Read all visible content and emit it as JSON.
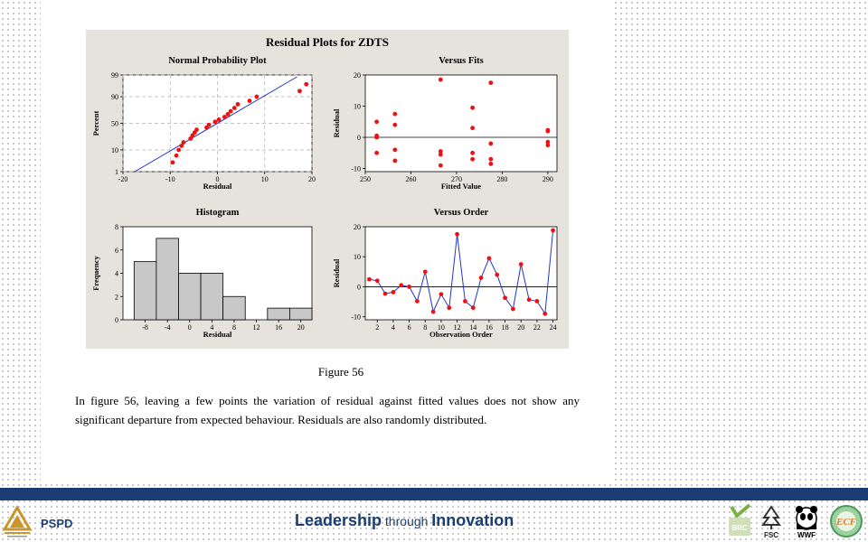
{
  "figure": {
    "main_title": "Residual Plots for ZDTS",
    "caption": "Figure 56",
    "paragraph": "In figure 56, leaving a few points the variation of residual against fitted values does not show any significant departure from expected behaviour. Residuals are also randomly distributed."
  },
  "footer": {
    "unit": "PSPD",
    "tag_lead": "Leadership",
    "tag_mid": " through ",
    "tag_end": "Innovation",
    "logos": [
      "ITC",
      "BRC",
      "FSC",
      "WWF",
      "ECF"
    ]
  },
  "colors": {
    "points": "#ee1111",
    "line": "#2233cc",
    "band": "#1b3d74",
    "bars": "#c8c8c8"
  },
  "chart_data": [
    {
      "type": "scatter",
      "title": "Normal Probability Plot",
      "xlabel": "Residual",
      "ylabel": "Percent",
      "xlim": [
        -20,
        20
      ],
      "xticks": [
        -20,
        -10,
        0,
        10,
        20
      ],
      "yticks": [
        1,
        10,
        50,
        90,
        99
      ],
      "grid": true,
      "x": [
        -9.5,
        -8.7,
        -8.2,
        -7.6,
        -7.2,
        -5.7,
        -5.3,
        -4.8,
        -4.4,
        -2.3,
        -1.8,
        -0.5,
        0.3,
        1.5,
        2.2,
        2.8,
        3.6,
        4.3,
        6.8,
        8.3,
        17.4,
        18.8
      ],
      "y": [
        3,
        6,
        10,
        14,
        18,
        23,
        28,
        33,
        38,
        42,
        47,
        53,
        57,
        62,
        67,
        72,
        77,
        82,
        86,
        90,
        94,
        97
      ],
      "fit_line": {
        "x": [
          -17.5,
          17.5
        ],
        "y": [
          1,
          99
        ]
      }
    },
    {
      "type": "scatter",
      "title": "Versus Fits",
      "xlabel": "Fitted Value",
      "ylabel": "Residual",
      "xlim": [
        250,
        292
      ],
      "ylim": [
        -11,
        20
      ],
      "xticks": [
        250,
        260,
        270,
        280,
        290
      ],
      "yticks": [
        -10,
        0,
        10,
        20
      ],
      "reference_line": 0,
      "x": [
        252.5,
        252.5,
        252.5,
        252.5,
        256.5,
        256.5,
        256.5,
        256.5,
        266.5,
        266.5,
        266.5,
        266.5,
        273.5,
        273.5,
        273.5,
        273.5,
        277.5,
        277.5,
        277.5,
        277.5,
        290,
        290,
        290,
        290
      ],
      "y": [
        5,
        0.5,
        0,
        -5,
        7.5,
        4,
        -4,
        -7.5,
        18.5,
        -4.5,
        -5.5,
        -9,
        9.5,
        3,
        -5,
        -7,
        17.5,
        -2,
        -7,
        -8.5,
        2,
        2.3,
        -1.5,
        -2.5
      ]
    },
    {
      "type": "bar",
      "title": "Histogram",
      "xlabel": "Residual",
      "ylabel": "Frequency",
      "bin_width": 4,
      "bin_starts": [
        -10,
        -6,
        -2,
        2,
        6,
        10,
        14,
        18
      ],
      "values": [
        5,
        7,
        4,
        4,
        2,
        0,
        1,
        1
      ],
      "xticks": [
        -8,
        -4,
        0,
        4,
        8,
        12,
        16,
        20
      ],
      "yticks": [
        0,
        2,
        4,
        6,
        8
      ],
      "ylim": [
        0,
        8
      ]
    },
    {
      "type": "line",
      "title": "Versus Order",
      "xlabel": "Observation Order",
      "ylabel": "Residual",
      "xlim": [
        0.5,
        24.5
      ],
      "ylim": [
        -11,
        20
      ],
      "xticks": [
        2,
        4,
        6,
        8,
        10,
        12,
        14,
        16,
        18,
        20,
        22,
        24
      ],
      "yticks": [
        -10,
        0,
        10,
        20
      ],
      "reference_line": 0,
      "x": [
        1,
        2,
        3,
        4,
        5,
        6,
        7,
        8,
        9,
        10,
        11,
        12,
        13,
        14,
        15,
        16,
        17,
        18,
        19,
        20,
        21,
        22,
        23,
        24
      ],
      "y": [
        2.5,
        2,
        -2.3,
        -1.8,
        0.5,
        0,
        -4.8,
        5,
        -8.3,
        -2.5,
        -7,
        17.5,
        -4.8,
        -7,
        3,
        9.5,
        4,
        -3.7,
        -7.4,
        7.5,
        -4.3,
        -4.8,
        -9,
        18.8
      ]
    }
  ]
}
